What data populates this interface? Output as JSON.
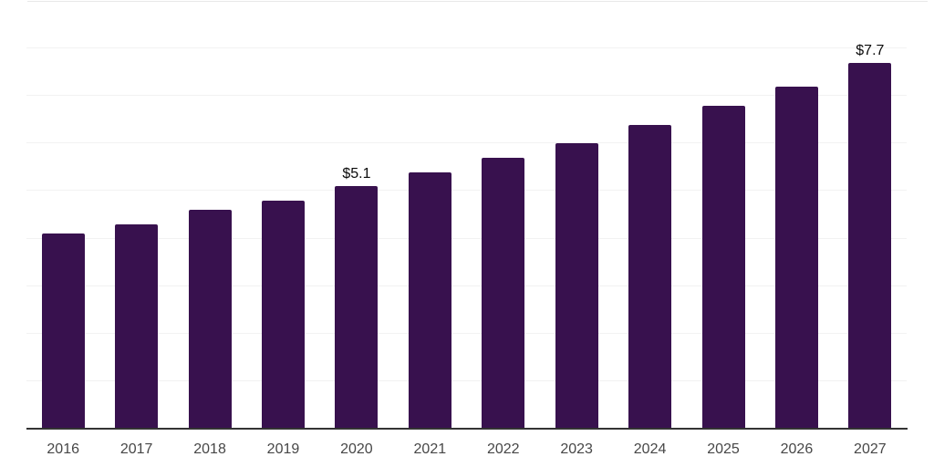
{
  "chart_data": {
    "type": "bar",
    "categories": [
      "2016",
      "2017",
      "2018",
      "2019",
      "2020",
      "2021",
      "2022",
      "2023",
      "2024",
      "2025",
      "2026",
      "2027"
    ],
    "values": [
      4.1,
      4.3,
      4.6,
      4.8,
      5.1,
      5.4,
      5.7,
      6.0,
      6.4,
      6.8,
      7.2,
      7.7
    ],
    "data_labels": {
      "2020": "$5.1",
      "2027": "$7.7"
    },
    "title": "",
    "xlabel": "",
    "ylabel": "",
    "ylim": [
      0,
      9
    ],
    "grid_step": 1,
    "grid": "horizontal-only",
    "legend": "none",
    "unit_prefix": "$"
  },
  "style": {
    "bar_color": "#38114e",
    "gridline_color": "#f2f2f2",
    "top_border_color": "#e8e8e8",
    "axis_line_color": "#333333",
    "tick_label_color": "#474747",
    "data_label_color": "#0a0a0a",
    "background": "#ffffff"
  }
}
